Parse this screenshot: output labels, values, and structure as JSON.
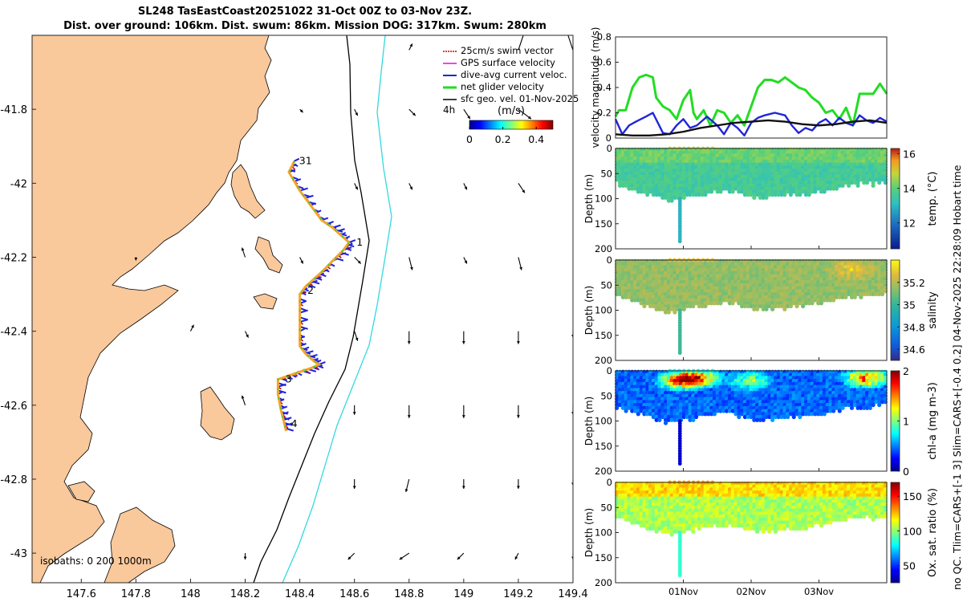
{
  "header": {
    "title_line1": "SL248 TasEastCoast20251022 31-Oct 00Z to 03-Nov 23Z.",
    "title_line2": "Dist. over ground: 106km. Dist. swum: 86km. Mission DOG: 317km. Swum: 280km"
  },
  "side_note": "no QC. Tlim=CARS+[-1 3] Slim=CARS+[-0.4 0.2] 04-Nov-2025 22:28:09 Hobart time",
  "colors": {
    "land": "#f9c89b",
    "coastline": "#000000",
    "isobath_200": "#000000",
    "isobath_1000": "#33d9e0",
    "net_velocity": "#22dd22",
    "dive_current": "#1f25d8",
    "gps_velocity": "#ee00ee",
    "swim_vector": "#cc0000",
    "sfc_geo": "#000000",
    "track": "#f4a52a"
  },
  "chart_data": [
    {
      "type": "scatter",
      "name": "map",
      "xlim": [
        147.42,
        149.4
      ],
      "ylim": [
        -43.08,
        -41.6
      ],
      "x_ticks": [
        147.6,
        147.8,
        148,
        148.2,
        148.4,
        148.6,
        148.8,
        149,
        149.2,
        149.4
      ],
      "x_tick_labels": [
        "147.6",
        "147.8",
        "148",
        "148.2",
        "148.4",
        "148.6",
        "148.8",
        "149",
        "149.2",
        "149.4"
      ],
      "y_ticks": [
        -41.8,
        -42,
        -42.2,
        -42.4,
        -42.6,
        -42.8,
        -43
      ],
      "y_tick_labels": [
        "-41.8",
        "-42",
        "-42.2",
        "-42.4",
        "-42.6",
        "-42.8",
        "-43"
      ],
      "legend": {
        "position": "top-right",
        "entries": [
          "25cm/s swim vector",
          "GPS surface velocity",
          "dive-avg current veloc.",
          "net glider velocity",
          "sfc geo. vel. 01-Nov-2025"
        ],
        "interval_label": "4h"
      },
      "colorbar": {
        "title": "(m/s)",
        "ticks": [
          0,
          0.2,
          0.4
        ],
        "tick_labels": [
          "0",
          "0.2",
          "0.4"
        ],
        "range": [
          0,
          0.5
        ]
      },
      "isobaths_label": "isobaths: 0   200   1000m",
      "track": {
        "lon": [
          148.38,
          148.36,
          148.4,
          148.44,
          148.48,
          148.52,
          148.55,
          148.58,
          148.56,
          148.52,
          148.48,
          148.45,
          148.42,
          148.4,
          148.4,
          148.4,
          148.4,
          148.42,
          148.45,
          148.47,
          148.44,
          148.4,
          148.36,
          148.32,
          148.32,
          148.33,
          148.34,
          148.35
        ],
        "lat": [
          -41.94,
          -41.97,
          -42.02,
          -42.06,
          -42.1,
          -42.12,
          -42.14,
          -42.16,
          -42.18,
          -42.21,
          -42.24,
          -42.26,
          -42.28,
          -42.3,
          -42.35,
          -42.4,
          -42.44,
          -42.46,
          -42.48,
          -42.49,
          -42.5,
          -42.51,
          -42.52,
          -42.53,
          -42.57,
          -42.61,
          -42.64,
          -42.67
        ]
      },
      "day_markers": [
        {
          "label": "31",
          "lon": 148.38,
          "lat": -41.94
        },
        {
          "label": "1",
          "lon": 148.59,
          "lat": -42.16
        },
        {
          "label": "2",
          "lon": 148.41,
          "lat": -42.29
        },
        {
          "label": "3",
          "lon": 148.33,
          "lat": -42.53
        },
        {
          "label": "4",
          "lon": 148.35,
          "lat": -42.65
        }
      ],
      "sfc_geo_vectors": [
        {
          "lon": 148.4,
          "lat": -41.8,
          "u": 0.01,
          "v": -0.01
        },
        {
          "lon": 148.6,
          "lat": -41.8,
          "u": 0.01,
          "v": -0.02
        },
        {
          "lon": 148.8,
          "lat": -41.8,
          "u": 0.02,
          "v": -0.02
        },
        {
          "lon": 149.0,
          "lat": -41.8,
          "u": 0.02,
          "v": -0.03
        },
        {
          "lon": 149.2,
          "lat": -41.8,
          "u": 0.04,
          "v": -0.03
        },
        {
          "lon": 149.4,
          "lat": -41.8,
          "u": 0.02,
          "v": 0.03
        },
        {
          "lon": 149.2,
          "lat": -41.64,
          "u": 0.02,
          "v": 0.06
        },
        {
          "lon": 149.4,
          "lat": -41.64,
          "u": -0.02,
          "v": 0.06
        },
        {
          "lon": 148.8,
          "lat": -41.64,
          "u": 0.01,
          "v": 0.02
        },
        {
          "lon": 148.6,
          "lat": -42.0,
          "u": 0.01,
          "v": -0.02
        },
        {
          "lon": 148.8,
          "lat": -42.0,
          "u": 0.01,
          "v": -0.02
        },
        {
          "lon": 149.0,
          "lat": -42.0,
          "u": 0.01,
          "v": -0.02
        },
        {
          "lon": 149.2,
          "lat": -42.0,
          "u": 0.02,
          "v": -0.03
        },
        {
          "lon": 149.4,
          "lat": -42.0,
          "u": 0.04,
          "v": -0.04
        },
        {
          "lon": 148.2,
          "lat": -42.2,
          "u": -0.01,
          "v": 0.03
        },
        {
          "lon": 148.6,
          "lat": -42.2,
          "u": 0.02,
          "v": -0.02
        },
        {
          "lon": 148.8,
          "lat": -42.2,
          "u": 0.01,
          "v": -0.04
        },
        {
          "lon": 149.0,
          "lat": -42.2,
          "u": 0.01,
          "v": -0.02
        },
        {
          "lon": 149.2,
          "lat": -42.2,
          "u": 0.01,
          "v": -0.04
        },
        {
          "lon": 149.4,
          "lat": -42.2,
          "u": 0.01,
          "v": -0.02
        },
        {
          "lon": 147.8,
          "lat": -42.2,
          "u": 0.0,
          "v": -0.01
        },
        {
          "lon": 148.4,
          "lat": -42.2,
          "u": 0.01,
          "v": -0.02
        },
        {
          "lon": 148.2,
          "lat": -42.4,
          "u": 0.01,
          "v": -0.02
        },
        {
          "lon": 148.6,
          "lat": -42.4,
          "u": 0.01,
          "v": -0.03
        },
        {
          "lon": 148.8,
          "lat": -42.4,
          "u": 0.0,
          "v": -0.04
        },
        {
          "lon": 149.0,
          "lat": -42.4,
          "u": 0.0,
          "v": -0.04
        },
        {
          "lon": 149.2,
          "lat": -42.4,
          "u": 0.0,
          "v": -0.04
        },
        {
          "lon": 149.4,
          "lat": -42.4,
          "u": 0.0,
          "v": -0.02
        },
        {
          "lon": 148.0,
          "lat": -42.4,
          "u": 0.01,
          "v": 0.02
        },
        {
          "lon": 148.2,
          "lat": -42.6,
          "u": -0.01,
          "v": 0.03
        },
        {
          "lon": 148.6,
          "lat": -42.6,
          "u": 0.0,
          "v": -0.03
        },
        {
          "lon": 148.8,
          "lat": -42.6,
          "u": 0.0,
          "v": -0.04
        },
        {
          "lon": 149.0,
          "lat": -42.6,
          "u": 0.0,
          "v": -0.04
        },
        {
          "lon": 149.2,
          "lat": -42.6,
          "u": 0.0,
          "v": -0.04
        },
        {
          "lon": 149.4,
          "lat": -42.6,
          "u": 0.0,
          "v": -0.03
        },
        {
          "lon": 148.6,
          "lat": -42.8,
          "u": 0.0,
          "v": -0.03
        },
        {
          "lon": 148.8,
          "lat": -42.8,
          "u": -0.01,
          "v": -0.04
        },
        {
          "lon": 149.0,
          "lat": -42.8,
          "u": 0.0,
          "v": -0.03
        },
        {
          "lon": 149.2,
          "lat": -42.8,
          "u": 0.0,
          "v": -0.03
        },
        {
          "lon": 149.4,
          "lat": -42.8,
          "u": 0.0,
          "v": -0.02
        },
        {
          "lon": 148.2,
          "lat": -43.0,
          "u": 0.0,
          "v": -0.02
        },
        {
          "lon": 148.6,
          "lat": -43.0,
          "u": -0.02,
          "v": -0.02
        },
        {
          "lon": 148.8,
          "lat": -43.0,
          "u": -0.03,
          "v": -0.02
        },
        {
          "lon": 149.0,
          "lat": -43.0,
          "u": -0.02,
          "v": -0.02
        },
        {
          "lon": 149.2,
          "lat": -43.0,
          "u": -0.01,
          "v": -0.02
        },
        {
          "lon": 149.4,
          "lat": -43.0,
          "u": 0.0,
          "v": -0.02
        }
      ]
    },
    {
      "type": "line",
      "name": "velocity_magnitude",
      "ylabel": "velocity magnitude (m/s)",
      "ylim": [
        0,
        0.8
      ],
      "y_ticks": [
        0,
        0.2,
        0.4,
        0.6,
        0.8
      ],
      "y_tick_labels": [
        "0",
        "0.2",
        "0.4",
        "0.6",
        "0.8"
      ],
      "xlim": [
        0,
        4
      ],
      "series": [
        {
          "name": "net glider velocity",
          "x": [
            0,
            0.05,
            0.15,
            0.25,
            0.35,
            0.45,
            0.55,
            0.6,
            0.7,
            0.8,
            0.9,
            1.0,
            1.1,
            1.15,
            1.2,
            1.3,
            1.4,
            1.5,
            1.6,
            1.7,
            1.8,
            1.9,
            2.0,
            2.1,
            2.2,
            2.3,
            2.4,
            2.5,
            2.6,
            2.7,
            2.8,
            2.9,
            3.0,
            3.1,
            3.2,
            3.3,
            3.4,
            3.5,
            3.6,
            3.7,
            3.8,
            3.9,
            4.0
          ],
          "y": [
            0.17,
            0.22,
            0.22,
            0.4,
            0.48,
            0.5,
            0.48,
            0.32,
            0.25,
            0.22,
            0.15,
            0.3,
            0.38,
            0.2,
            0.15,
            0.22,
            0.1,
            0.22,
            0.2,
            0.12,
            0.18,
            0.1,
            0.25,
            0.4,
            0.46,
            0.46,
            0.44,
            0.48,
            0.44,
            0.4,
            0.38,
            0.32,
            0.28,
            0.2,
            0.22,
            0.15,
            0.24,
            0.1,
            0.35,
            0.35,
            0.35,
            0.43,
            0.35
          ]
        },
        {
          "name": "dive-avg current veloc.",
          "x": [
            0,
            0.1,
            0.2,
            0.3,
            0.45,
            0.55,
            0.7,
            0.8,
            0.9,
            1.0,
            1.1,
            1.2,
            1.35,
            1.5,
            1.6,
            1.7,
            1.8,
            1.9,
            2.0,
            2.1,
            2.2,
            2.35,
            2.5,
            2.6,
            2.7,
            2.8,
            2.9,
            3.0,
            3.1,
            3.2,
            3.3,
            3.4,
            3.5,
            3.6,
            3.7,
            3.8,
            3.9,
            4.0
          ],
          "y": [
            0.15,
            0.03,
            0.1,
            0.13,
            0.17,
            0.2,
            0.04,
            0.03,
            0.1,
            0.15,
            0.08,
            0.1,
            0.17,
            0.1,
            0.03,
            0.12,
            0.08,
            0.02,
            0.12,
            0.16,
            0.18,
            0.2,
            0.18,
            0.1,
            0.04,
            0.08,
            0.06,
            0.12,
            0.15,
            0.1,
            0.16,
            0.12,
            0.1,
            0.18,
            0.14,
            0.12,
            0.16,
            0.13
          ]
        },
        {
          "name": "sfc geo. vel.",
          "x": [
            0,
            0.25,
            0.5,
            0.75,
            1.0,
            1.25,
            1.5,
            1.75,
            2.0,
            2.25,
            2.5,
            2.75,
            3.0,
            3.25,
            3.5,
            3.75,
            4.0
          ],
          "y": [
            0.03,
            0.02,
            0.02,
            0.03,
            0.05,
            0.08,
            0.1,
            0.12,
            0.13,
            0.14,
            0.13,
            0.11,
            0.1,
            0.11,
            0.13,
            0.14,
            0.12
          ]
        }
      ]
    },
    {
      "type": "heatmap",
      "name": "temperature",
      "ylabel": "Depth (m)",
      "cbar_label": "temp. (°C)",
      "cbar_range": [
        10.5,
        16.3
      ],
      "cbar_ticks": [
        12,
        14,
        16
      ],
      "cbar_tick_labels": [
        "12",
        "14",
        "16"
      ],
      "ylim": [
        0,
        200
      ],
      "y_ticks": [
        0,
        50,
        100,
        150,
        200
      ],
      "y_tick_labels": [
        "0",
        "50",
        "100",
        "150",
        "200"
      ],
      "base_value": 13.8,
      "hotspots": []
    },
    {
      "type": "heatmap",
      "name": "salinity",
      "ylabel": "Depth (m)",
      "cbar_label": "salinity",
      "cbar_range": [
        34.5,
        35.4
      ],
      "cbar_ticks": [
        34.6,
        34.8,
        35,
        35.2
      ],
      "cbar_tick_labels": [
        "34.6",
        "34.8",
        "35",
        "35.2"
      ],
      "ylim": [
        0,
        200
      ],
      "y_ticks": [
        0,
        50,
        100,
        150,
        200
      ],
      "y_tick_labels": [
        "0",
        "50",
        "100",
        "150",
        "200"
      ],
      "base_value": 35.15,
      "hotspots": [
        {
          "x": 3.5,
          "depth": 20,
          "value": 35.35
        }
      ]
    },
    {
      "type": "heatmap",
      "name": "chlorophyll",
      "ylabel": "Depth (m)",
      "cbar_label": "chl-a (mg m-3)",
      "cbar_range": [
        0,
        2
      ],
      "cbar_ticks": [
        0,
        1,
        2
      ],
      "cbar_tick_labels": [
        "0",
        "1",
        "2"
      ],
      "ylim": [
        0,
        200
      ],
      "y_ticks": [
        0,
        50,
        100,
        150,
        200
      ],
      "y_tick_labels": [
        "0",
        "50",
        "100",
        "150",
        "200"
      ],
      "base_value": 0.45,
      "hotspots": [
        {
          "x": 0.95,
          "depth": 20,
          "value": 1.9
        },
        {
          "x": 1.25,
          "depth": 15,
          "value": 1.8
        },
        {
          "x": 3.7,
          "depth": 15,
          "value": 1.9
        },
        {
          "x": 2.0,
          "depth": 20,
          "value": 1.2
        }
      ]
    },
    {
      "type": "heatmap",
      "name": "oxygen",
      "ylabel": "Depth (m)",
      "cbar_label": "Ox. sat. ratio (%)",
      "cbar_range": [
        25,
        170
      ],
      "cbar_ticks": [
        50,
        100,
        150
      ],
      "cbar_tick_labels": [
        "50",
        "100",
        "150"
      ],
      "ylim": [
        0,
        200
      ],
      "y_ticks": [
        0,
        50,
        100,
        150,
        200
      ],
      "y_tick_labels": [
        "0",
        "50",
        "100",
        "150",
        "200"
      ],
      "base_value": 108,
      "hotspots": []
    }
  ],
  "time_axis": {
    "xlim": [
      0,
      4
    ],
    "ticks": [
      1,
      2,
      3
    ],
    "tick_labels": [
      "01Nov",
      "02Nov",
      "03Nov"
    ]
  }
}
